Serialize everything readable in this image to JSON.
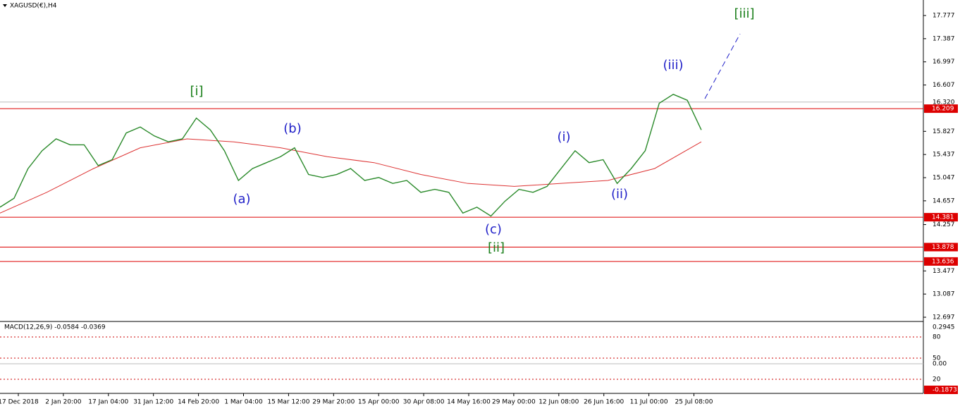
{
  "symbol": "XAGUSD(€),H4",
  "price_axis": {
    "ylim": [
      12.697,
      17.777
    ],
    "ticks": [
      17.777,
      17.387,
      16.997,
      16.607,
      15.827,
      15.437,
      15.047,
      14.657,
      14.257,
      13.477,
      13.087,
      12.697
    ]
  },
  "current_price": {
    "value": 16.32,
    "label": "16.320"
  },
  "levels": [
    16.209,
    14.381,
    13.878,
    13.636
  ],
  "price": [
    14.55,
    14.7,
    15.2,
    15.5,
    15.7,
    15.6,
    15.6,
    15.25,
    15.35,
    15.8,
    15.9,
    15.75,
    15.65,
    15.7,
    16.05,
    15.85,
    15.5,
    15.0,
    15.2,
    15.3,
    15.4,
    15.55,
    15.1,
    15.05,
    15.1,
    15.2,
    15.0,
    15.05,
    14.95,
    15.0,
    14.8,
    14.85,
    14.8,
    14.45,
    14.55,
    14.4,
    14.65,
    14.85,
    14.8,
    14.9,
    15.2,
    15.5,
    15.3,
    15.35,
    14.95,
    15.2,
    15.5,
    16.3,
    16.45,
    16.35,
    15.85
  ],
  "slow_ma": [
    14.45,
    14.8,
    15.2,
    15.55,
    15.7,
    15.65,
    15.55,
    15.4,
    15.3,
    15.1,
    14.95,
    14.9,
    14.95,
    15.0,
    15.2,
    15.65
  ],
  "waves": [
    {
      "label": "[i]",
      "color": "#1a7f1a"
    },
    {
      "label": "(a)",
      "color": "#1f1fc8"
    },
    {
      "label": "(b)",
      "color": "#1f1fc8"
    },
    {
      "label": "(c)",
      "color": "#1f1fc8"
    },
    {
      "label": "[ii]",
      "color": "#1a7f1a"
    },
    {
      "label": "(i)",
      "color": "#1f1fc8"
    },
    {
      "label": "(ii)",
      "color": "#1f1fc8"
    },
    {
      "label": "(iii)",
      "color": "#1f1fc8"
    },
    {
      "label": "[iii]",
      "color": "#1a7f1a"
    }
  ],
  "macd": {
    "title": "MACD(12,26,9) -0.0584 -0.0369",
    "labels": [
      "0.2945",
      "80",
      "50",
      "0.00",
      "20",
      "-0.1873"
    ]
  },
  "time_labels": [
    "17 Dec 2018",
    "2 Jan 20:00",
    "17 Jan 04:00",
    "31 Jan 12:00",
    "14 Feb 20:00",
    "1 Mar 04:00",
    "15 Mar 12:00",
    "29 Mar 20:00",
    "15 Apr 00:00",
    "30 Apr 08:00",
    "14 May 16:00",
    "29 May 00:00",
    "12 Jun 08:00",
    "26 Jun 16:00",
    "11 Jul 00:00",
    "25 Jul 08:00"
  ]
}
